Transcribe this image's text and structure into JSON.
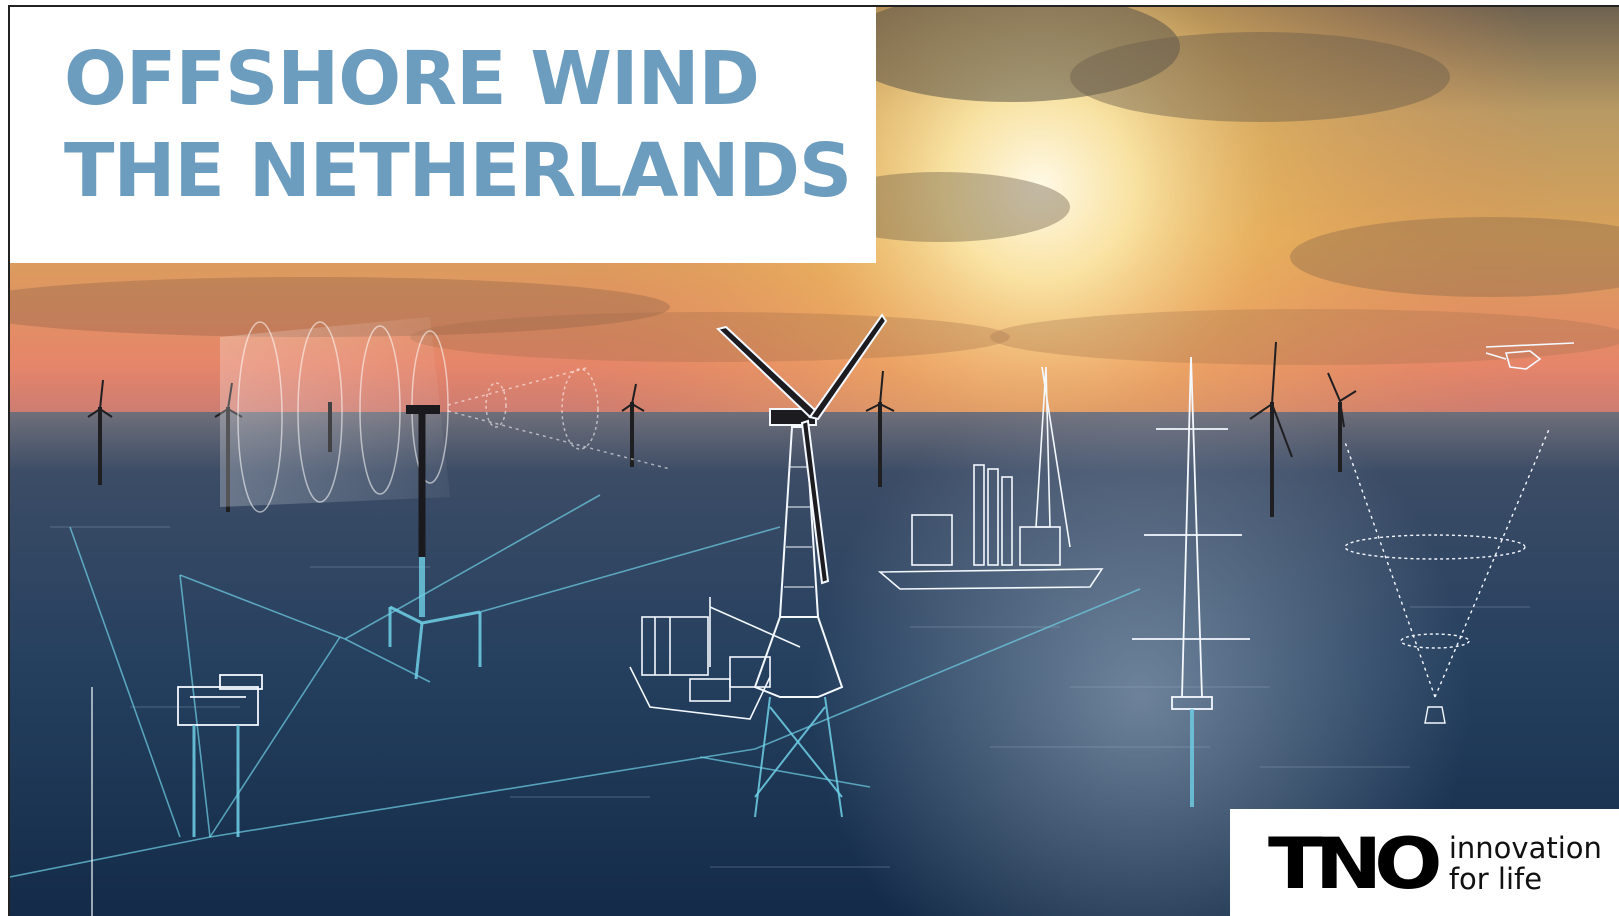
{
  "title": {
    "line1": "OFFSHORE WIND",
    "line2": "THE NETHERLANDS"
  },
  "logo": {
    "wordmark": "TNO",
    "tagline_line1": "innovation",
    "tagline_line2": "for life"
  },
  "colors": {
    "title": "#6c9dbf",
    "sea": "#1d3a5c",
    "sky_glow": "#f3c46a",
    "wireframe": "#e9f4ff",
    "cyan_lines": "#6fd0e6"
  },
  "illustration": {
    "subjects": [
      "wind-turbine",
      "offshore-substation",
      "installation-vessel",
      "jack-up-crane",
      "met-mast",
      "lidar-buoy",
      "helicopter",
      "subsea-cable",
      "floating-foundation"
    ]
  }
}
